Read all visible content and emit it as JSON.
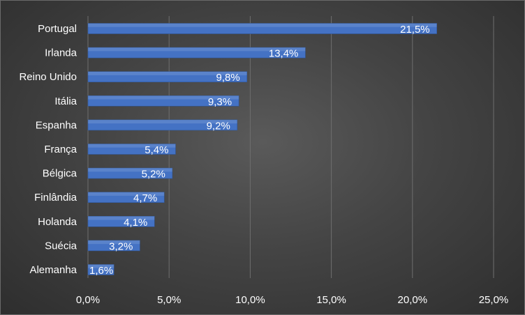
{
  "chart_data": {
    "type": "bar",
    "orientation": "horizontal",
    "categories": [
      "Portugal",
      "Irlanda",
      "Reino Unido",
      "Itália",
      "Espanha",
      "França",
      "Bélgica",
      "Finlândia",
      "Holanda",
      "Suécia",
      "Alemanha"
    ],
    "values": [
      21.5,
      13.4,
      9.8,
      9.3,
      9.2,
      5.4,
      5.2,
      4.7,
      4.1,
      3.2,
      1.6
    ],
    "data_labels": [
      "21,5%",
      "13,4%",
      "9,8%",
      "9,3%",
      "9,2%",
      "5,4%",
      "5,2%",
      "4,7%",
      "4,1%",
      "3,2%",
      "1,6%"
    ],
    "x_ticks": [
      0,
      5,
      10,
      15,
      20,
      25
    ],
    "x_tick_labels": [
      "0,0%",
      "5,0%",
      "10,0%",
      "15,0%",
      "20,0%",
      "25,0%"
    ],
    "xlim": [
      0,
      25
    ],
    "grid": true,
    "title": "",
    "xlabel": "",
    "ylabel": "",
    "bar_color": "#4472c4",
    "background_color": "#444444"
  }
}
